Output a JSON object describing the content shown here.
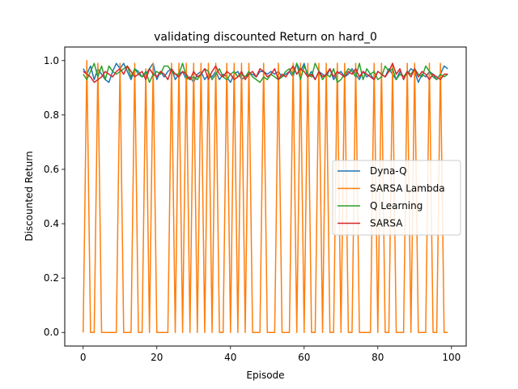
{
  "chart_data": {
    "type": "line",
    "title": "validating discounted Return on hard_0",
    "xlabel": "Episode",
    "ylabel": "Discounted Return",
    "xlim": [
      -5,
      104
    ],
    "ylim": [
      -0.05,
      1.05
    ],
    "xticks": [
      0,
      20,
      40,
      60,
      80,
      100
    ],
    "xtick_labels": [
      "0",
      "20",
      "40",
      "60",
      "80",
      "100"
    ],
    "yticks": [
      0.0,
      0.2,
      0.4,
      0.6,
      0.8,
      1.0
    ],
    "ytick_labels": [
      "0.0",
      "0.2",
      "0.4",
      "0.6",
      "0.8",
      "1.0"
    ],
    "grid": false,
    "legend_position": "center-right",
    "x": [
      0,
      1,
      2,
      3,
      4,
      5,
      6,
      7,
      8,
      9,
      10,
      11,
      12,
      13,
      14,
      15,
      16,
      17,
      18,
      19,
      20,
      21,
      22,
      23,
      24,
      25,
      26,
      27,
      28,
      29,
      30,
      31,
      32,
      33,
      34,
      35,
      36,
      37,
      38,
      39,
      40,
      41,
      42,
      43,
      44,
      45,
      46,
      47,
      48,
      49,
      50,
      51,
      52,
      53,
      54,
      55,
      56,
      57,
      58,
      59,
      60,
      61,
      62,
      63,
      64,
      65,
      66,
      67,
      68,
      69,
      70,
      71,
      72,
      73,
      74,
      75,
      76,
      77,
      78,
      79,
      80,
      81,
      82,
      83,
      84,
      85,
      86,
      87,
      88,
      89,
      90,
      91,
      92,
      93,
      94,
      95,
      96,
      97,
      98,
      99
    ],
    "series": [
      {
        "name": "Dyna-Q",
        "color": "#1f77b4",
        "values": [
          0.97,
          0.95,
          0.98,
          0.93,
          0.97,
          0.95,
          0.93,
          0.92,
          0.96,
          0.99,
          0.97,
          0.99,
          0.96,
          0.93,
          0.97,
          0.96,
          0.94,
          0.95,
          0.97,
          0.99,
          0.93,
          0.96,
          0.94,
          0.96,
          0.97,
          0.93,
          0.95,
          0.96,
          0.93,
          0.94,
          0.92,
          0.95,
          0.96,
          0.93,
          0.95,
          0.94,
          0.96,
          0.93,
          0.95,
          0.94,
          0.92,
          0.95,
          0.96,
          0.93,
          0.94,
          0.95,
          0.95,
          0.94,
          0.96,
          0.96,
          0.95,
          0.96,
          0.95,
          0.96,
          0.94,
          0.95,
          0.96,
          0.94,
          0.99,
          0.96,
          0.99,
          0.94,
          0.96,
          0.93,
          0.96,
          0.95,
          0.94,
          0.97,
          0.93,
          0.95,
          0.96,
          0.94,
          0.95,
          0.97,
          0.95,
          0.93,
          0.96,
          0.94,
          0.95,
          0.93,
          0.96,
          0.95,
          0.94,
          0.97,
          0.95,
          0.93,
          0.96,
          0.94,
          0.95,
          0.97,
          0.96,
          0.92,
          0.95,
          0.94,
          0.96,
          0.95,
          0.93,
          0.95,
          0.98,
          0.97
        ]
      },
      {
        "name": "SARSA Lambda",
        "color": "#ff7f0e",
        "values": [
          0.0,
          1.0,
          0.0,
          0.0,
          0.99,
          0.0,
          0.0,
          0.0,
          0.0,
          0.0,
          0.99,
          0.0,
          0.0,
          0.0,
          0.99,
          0.0,
          0.0,
          0.97,
          0.0,
          0.99,
          0.0,
          0.0,
          0.0,
          0.0,
          0.99,
          0.0,
          0.99,
          0.0,
          0.99,
          0.0,
          0.99,
          0.0,
          0.99,
          0.0,
          0.99,
          0.0,
          0.99,
          0.0,
          0.0,
          0.99,
          0.0,
          0.99,
          0.0,
          0.99,
          0.0,
          0.99,
          0.0,
          0.0,
          0.0,
          0.99,
          0.0,
          0.0,
          0.0,
          0.99,
          0.0,
          0.0,
          0.0,
          0.99,
          0.0,
          0.99,
          0.0,
          0.99,
          0.0,
          0.0,
          0.99,
          0.0,
          0.99,
          0.0,
          0.0,
          0.99,
          0.0,
          0.99,
          0.0,
          0.0,
          0.99,
          0.0,
          0.0,
          0.0,
          0.0,
          0.99,
          0.0,
          0.99,
          0.0,
          0.0,
          0.99,
          0.0,
          0.0,
          0.0,
          0.99,
          0.0,
          0.99,
          0.0,
          0.0,
          0.0,
          0.99,
          0.0,
          0.0,
          0.99,
          0.0,
          0.0
        ]
      },
      {
        "name": "Q Learning",
        "color": "#2ca02c",
        "values": [
          0.95,
          0.93,
          0.96,
          0.99,
          0.94,
          0.98,
          0.93,
          0.98,
          0.96,
          0.95,
          0.96,
          0.97,
          0.98,
          0.94,
          0.97,
          0.95,
          0.94,
          0.96,
          0.92,
          0.95,
          0.96,
          0.95,
          0.98,
          0.98,
          0.96,
          0.95,
          0.95,
          0.99,
          0.94,
          0.93,
          0.94,
          0.93,
          0.95,
          0.97,
          0.96,
          0.93,
          0.95,
          0.97,
          0.94,
          0.93,
          0.95,
          0.96,
          0.94,
          0.95,
          0.94,
          0.96,
          0.94,
          0.93,
          0.92,
          0.94,
          0.93,
          0.95,
          0.94,
          0.93,
          0.94,
          0.96,
          0.97,
          0.95,
          0.99,
          0.93,
          0.98,
          0.95,
          0.94,
          0.99,
          0.96,
          0.93,
          0.95,
          0.94,
          0.97,
          0.92,
          0.93,
          0.95,
          0.97,
          0.96,
          0.94,
          0.99,
          0.93,
          0.97,
          0.95,
          0.96,
          0.93,
          0.94,
          0.98,
          0.96,
          0.97,
          0.93,
          0.95,
          0.94,
          0.96,
          0.95,
          0.97,
          0.95,
          0.94,
          0.98,
          0.96,
          0.94,
          0.93,
          0.95,
          0.94,
          0.95
        ]
      },
      {
        "name": "SARSA",
        "color": "#d62728",
        "values": [
          0.96,
          0.95,
          0.94,
          0.92,
          0.93,
          0.94,
          0.96,
          0.95,
          0.94,
          0.96,
          0.97,
          0.95,
          0.98,
          0.96,
          0.94,
          0.95,
          0.96,
          0.93,
          0.97,
          0.95,
          0.94,
          0.96,
          0.95,
          0.93,
          0.97,
          0.95,
          0.94,
          0.96,
          0.95,
          0.93,
          0.96,
          0.94,
          0.95,
          0.97,
          0.93,
          0.96,
          0.98,
          0.95,
          0.94,
          0.96,
          0.95,
          0.93,
          0.94,
          0.96,
          0.93,
          0.95,
          0.96,
          0.94,
          0.97,
          0.96,
          0.94,
          0.95,
          0.97,
          0.93,
          0.95,
          0.94,
          0.96,
          0.98,
          0.95,
          0.97,
          0.96,
          0.94,
          0.95,
          0.93,
          0.96,
          0.94,
          0.95,
          0.97,
          0.94,
          0.96,
          0.95,
          0.94,
          0.96,
          0.95,
          0.97,
          0.94,
          0.96,
          0.95,
          0.94,
          0.93,
          0.96,
          0.95,
          0.94,
          0.96,
          0.99,
          0.95,
          0.97,
          0.93,
          0.96,
          0.94,
          0.97,
          0.94,
          0.96,
          0.95,
          0.93,
          0.95,
          0.94,
          0.93,
          0.95,
          0.95
        ]
      }
    ]
  }
}
